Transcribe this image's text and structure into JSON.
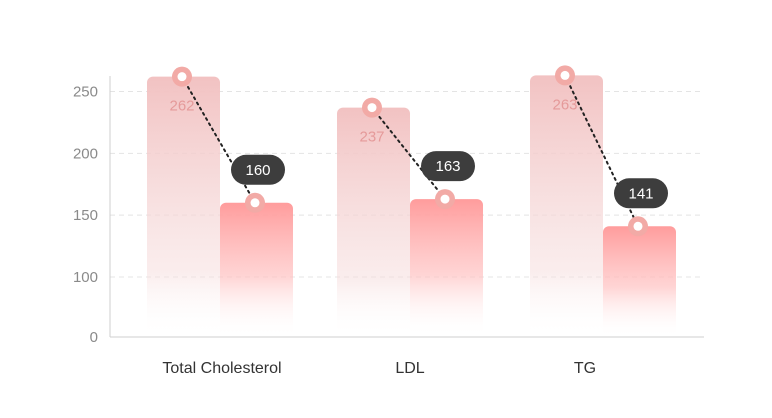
{
  "chart_data": {
    "type": "bar",
    "categories": [
      "Total Cholesterol",
      "LDL",
      "TG"
    ],
    "series": [
      {
        "values": [
          262,
          237,
          263
        ]
      },
      {
        "values": [
          160,
          163,
          141
        ]
      }
    ],
    "yticks": [
      "0",
      "100",
      "150",
      "200",
      "250"
    ],
    "ylim": [
      0,
      275
    ],
    "grid": true,
    "colors": {
      "before_top": "#f2c2c2",
      "after_top": "#ff9c9c",
      "marker_ring": "#f2aaa6",
      "callout_bg": "#3d3d3d",
      "grid": "#e4e4e4",
      "axis": "#cfcfcf"
    }
  }
}
